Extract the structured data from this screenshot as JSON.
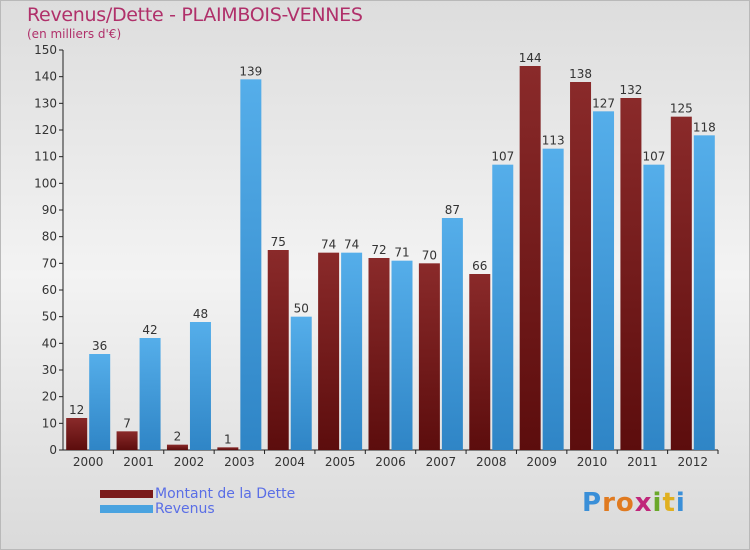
{
  "header": {
    "title": "Revenus/Dette - PLAIMBOIS-VENNES",
    "subtitle": "(en milliers d'€)"
  },
  "logo": {
    "letters": [
      "P",
      "r",
      "o",
      "x",
      "i",
      "t",
      "i"
    ]
  },
  "colors": {
    "dette": "#7a1a1a",
    "revenus": "#4aa3e0",
    "title": "#b0306a",
    "legend_text": "#5a6ee6"
  },
  "chart_data": {
    "type": "bar",
    "categories": [
      "2000",
      "2001",
      "2002",
      "2003",
      "2004",
      "2005",
      "2006",
      "2007",
      "2008",
      "2009",
      "2010",
      "2011",
      "2012"
    ],
    "series": [
      {
        "name": "Montant de la Dette",
        "values": [
          12,
          7,
          2,
          1,
          75,
          74,
          72,
          70,
          66,
          144,
          138,
          132,
          125
        ]
      },
      {
        "name": "Revenus",
        "values": [
          36,
          42,
          48,
          139,
          50,
          74,
          71,
          87,
          107,
          113,
          127,
          107,
          118
        ]
      }
    ],
    "title": "Revenus/Dette - PLAIMBOIS-VENNES",
    "ylabel": "(en milliers d'€)",
    "xlabel": "",
    "ylim": [
      0,
      150
    ],
    "yticks": [
      0,
      10,
      20,
      30,
      40,
      50,
      60,
      70,
      80,
      90,
      100,
      110,
      120,
      130,
      140,
      150
    ],
    "grid": false,
    "legend": "bottom-left"
  }
}
